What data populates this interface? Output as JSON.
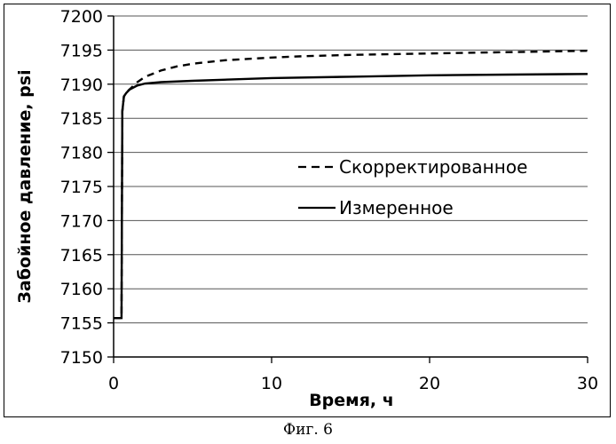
{
  "chart_data": {
    "type": "line",
    "xlabel": "Время, ч",
    "ylabel": "Забойное давление, psi",
    "xlim": [
      0,
      30
    ],
    "ylim": [
      7150,
      7200
    ],
    "x_ticks": [
      0,
      10,
      20,
      30
    ],
    "y_ticks": [
      7150,
      7155,
      7160,
      7165,
      7170,
      7175,
      7180,
      7185,
      7190,
      7195,
      7200
    ],
    "grid": "horizontal",
    "legend_position": "right",
    "series": [
      {
        "name": "Скорректированное",
        "style": "dashed",
        "color": "#000000",
        "points": [
          [
            0,
            7155.7
          ],
          [
            0.5,
            7155.7
          ],
          [
            0.55,
            7186
          ],
          [
            0.65,
            7188.2
          ],
          [
            0.8,
            7188.7
          ],
          [
            1.0,
            7189.2
          ],
          [
            1.5,
            7190.3
          ],
          [
            2,
            7191.1
          ],
          [
            3,
            7192.0
          ],
          [
            4,
            7192.6
          ],
          [
            5,
            7193.0
          ],
          [
            7,
            7193.5
          ],
          [
            10,
            7193.9
          ],
          [
            12,
            7194.1
          ],
          [
            15,
            7194.3
          ],
          [
            20,
            7194.5
          ],
          [
            25,
            7194.7
          ],
          [
            30,
            7194.9
          ]
        ]
      },
      {
        "name": "Измеренное",
        "style": "solid",
        "color": "#000000",
        "points": [
          [
            0,
            7155.7
          ],
          [
            0.5,
            7155.7
          ],
          [
            0.55,
            7186
          ],
          [
            0.65,
            7188.2
          ],
          [
            0.8,
            7188.7
          ],
          [
            1.0,
            7189.2
          ],
          [
            1.5,
            7189.8
          ],
          [
            2,
            7190.1
          ],
          [
            3,
            7190.3
          ],
          [
            5,
            7190.5
          ],
          [
            10,
            7190.9
          ],
          [
            15,
            7191.1
          ],
          [
            20,
            7191.3
          ],
          [
            25,
            7191.4
          ],
          [
            30,
            7191.5
          ]
        ]
      }
    ]
  },
  "caption": "Фиг. 6"
}
